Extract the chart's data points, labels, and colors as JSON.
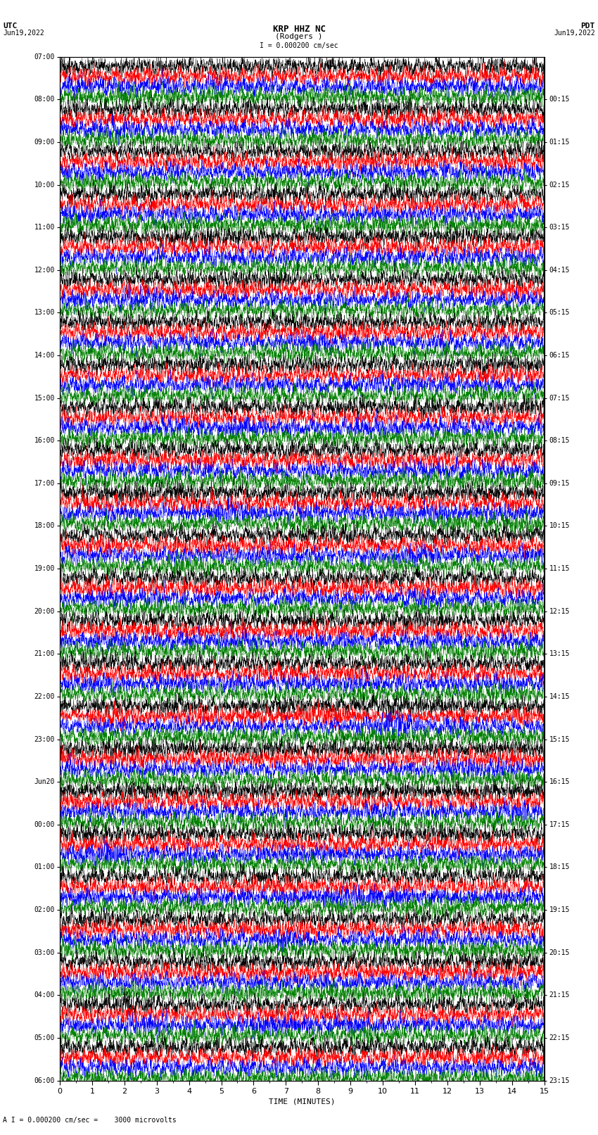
{
  "title_line1": "KRP HHZ NC",
  "title_line2": "(Rodgers )",
  "scale_label": "I = 0.000200 cm/sec",
  "utc_label": "UTC",
  "date_left": "Jun19,2022",
  "date_right": "Jun19,2022",
  "pdt_label": "PDT",
  "bottom_label": "A I = 0.000200 cm/sec =    3000 microvolts",
  "xlabel": "TIME (MINUTES)",
  "left_times": [
    "07:00",
    "08:00",
    "09:00",
    "10:00",
    "11:00",
    "12:00",
    "13:00",
    "14:00",
    "15:00",
    "16:00",
    "17:00",
    "18:00",
    "19:00",
    "20:00",
    "21:00",
    "22:00",
    "23:00",
    "Jun20\n00:00",
    "01:00",
    "02:00",
    "03:00",
    "04:00",
    "05:00",
    "06:00"
  ],
  "right_times": [
    "00:15",
    "01:15",
    "02:15",
    "03:15",
    "04:15",
    "05:15",
    "06:15",
    "07:15",
    "08:15",
    "09:15",
    "10:15",
    "11:15",
    "12:15",
    "13:15",
    "14:15",
    "15:15",
    "16:15",
    "17:15",
    "18:15",
    "19:15",
    "20:15",
    "21:15",
    "22:15",
    "23:15"
  ],
  "colors": [
    "black",
    "red",
    "blue",
    "green"
  ],
  "n_rows": 24,
  "total_minutes": 15,
  "fig_width": 8.5,
  "fig_height": 16.13,
  "bg_color": "white",
  "trace_linewidth": 0.3,
  "font_size": 7,
  "title_font_size": 8
}
